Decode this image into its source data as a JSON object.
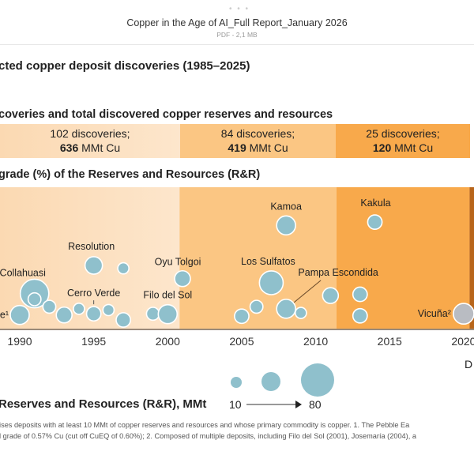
{
  "viewer": {
    "title": "Copper in the Age of AI_Full Report_January 2026",
    "subtitle": "PDF - 2,1 MB",
    "more_icon": "ellipsis-icon"
  },
  "page": {
    "heading": "cted copper deposit discoveries (1985–2025)",
    "subheading": "coveries and total discovered copper reserves and resources",
    "chart_heading": "grade (%) of the Reserves and Resources (R&R)",
    "periods": [
      {
        "count": "102 discoveries;",
        "rr_value": "636",
        "rr_unit": " MMt Cu",
        "color": "#fde3c6"
      },
      {
        "count": "84 discoveries;",
        "rr_value": "419",
        "rr_unit": " MMt Cu",
        "color": "#fbc683"
      },
      {
        "count": "25 discoveries;",
        "rr_value": "120",
        "rr_unit": " MMt Cu",
        "color": "#f8a94b"
      }
    ],
    "legend": {
      "title": "Reserves  and Resources (R&R), MMt",
      "min": "10",
      "max": "80",
      "partial": "D"
    },
    "footnotes": [
      "rises deposits with at least 10 MMt of copper reserves and resources and whose primary commodity is copper. 1. The Pebble Ea",
      "d grade of 0.57% Cu (cut off CuEQ of 0.60%); 2. Composed of multiple deposits, including Filo del Sol (2001), Josemaría (2004), a"
    ]
  },
  "chart_data": {
    "type": "scatter",
    "title": "",
    "xlabel": "",
    "ylabel": "grade (%)",
    "x_ticks": [
      "1990",
      "1995",
      "2000",
      "2005",
      "2010",
      "2015",
      "2020"
    ],
    "xlim": [
      1989,
      2020.8
    ],
    "period_boundaries": [
      2000.8,
      2011.4,
      2020.4
    ],
    "bubble_color": "#8fc0cc",
    "highlight_color": "#b9bcc2",
    "size_legend_range": [
      10,
      80
    ],
    "points": [
      {
        "year": 1990,
        "grade": 0.35,
        "rr": 26,
        "label": "e¹"
      },
      {
        "year": 1991,
        "grade": 0.87,
        "rr": 59,
        "label": "Collahuasi"
      },
      {
        "year": 1991,
        "grade": 0.73,
        "rr": 12
      },
      {
        "year": 1992,
        "grade": 0.55,
        "rr": 12
      },
      {
        "year": 1993,
        "grade": 0.35,
        "rr": 18
      },
      {
        "year": 1994,
        "grade": 0.5,
        "rr": 9
      },
      {
        "year": 1995,
        "grade": 0.38,
        "rr": 15,
        "label": "Cerro Verde"
      },
      {
        "year": 1996,
        "grade": 0.47,
        "rr": 9
      },
      {
        "year": 1997,
        "grade": 0.23,
        "rr": 15
      },
      {
        "year": 1995,
        "grade": 1.55,
        "rr": 22,
        "label": "Resolution"
      },
      {
        "year": 1997,
        "grade": 1.48,
        "rr": 9
      },
      {
        "year": 2001,
        "grade": 1.23,
        "rr": 18,
        "label": "Oyu Tolgoi"
      },
      {
        "year": 1999,
        "grade": 0.38,
        "rr": 12
      },
      {
        "year": 2000,
        "grade": 0.37,
        "rr": 26,
        "label": "Filo del Sol"
      },
      {
        "year": 2005,
        "grade": 0.32,
        "rr": 15
      },
      {
        "year": 2006,
        "grade": 0.55,
        "rr": 12
      },
      {
        "year": 2007,
        "grade": 1.13,
        "rr": 41,
        "label": "Los Sulfatos"
      },
      {
        "year": 2008,
        "grade": 0.5,
        "rr": 26,
        "label": "Pampa Escondida"
      },
      {
        "year": 2009,
        "grade": 0.4,
        "rr": 9
      },
      {
        "year": 2008,
        "grade": 2.52,
        "rr": 26,
        "label": "Kamoa"
      },
      {
        "year": 2011,
        "grade": 0.82,
        "rr": 18
      },
      {
        "year": 2013,
        "grade": 0.85,
        "rr": 15
      },
      {
        "year": 2013,
        "grade": 0.33,
        "rr": 15
      },
      {
        "year": 2014,
        "grade": 2.6,
        "rr": 15,
        "label": "Kakula"
      },
      {
        "year": 2020,
        "grade": 0.38,
        "rr": 31,
        "label": "Vicuña²",
        "highlight": true
      }
    ]
  }
}
